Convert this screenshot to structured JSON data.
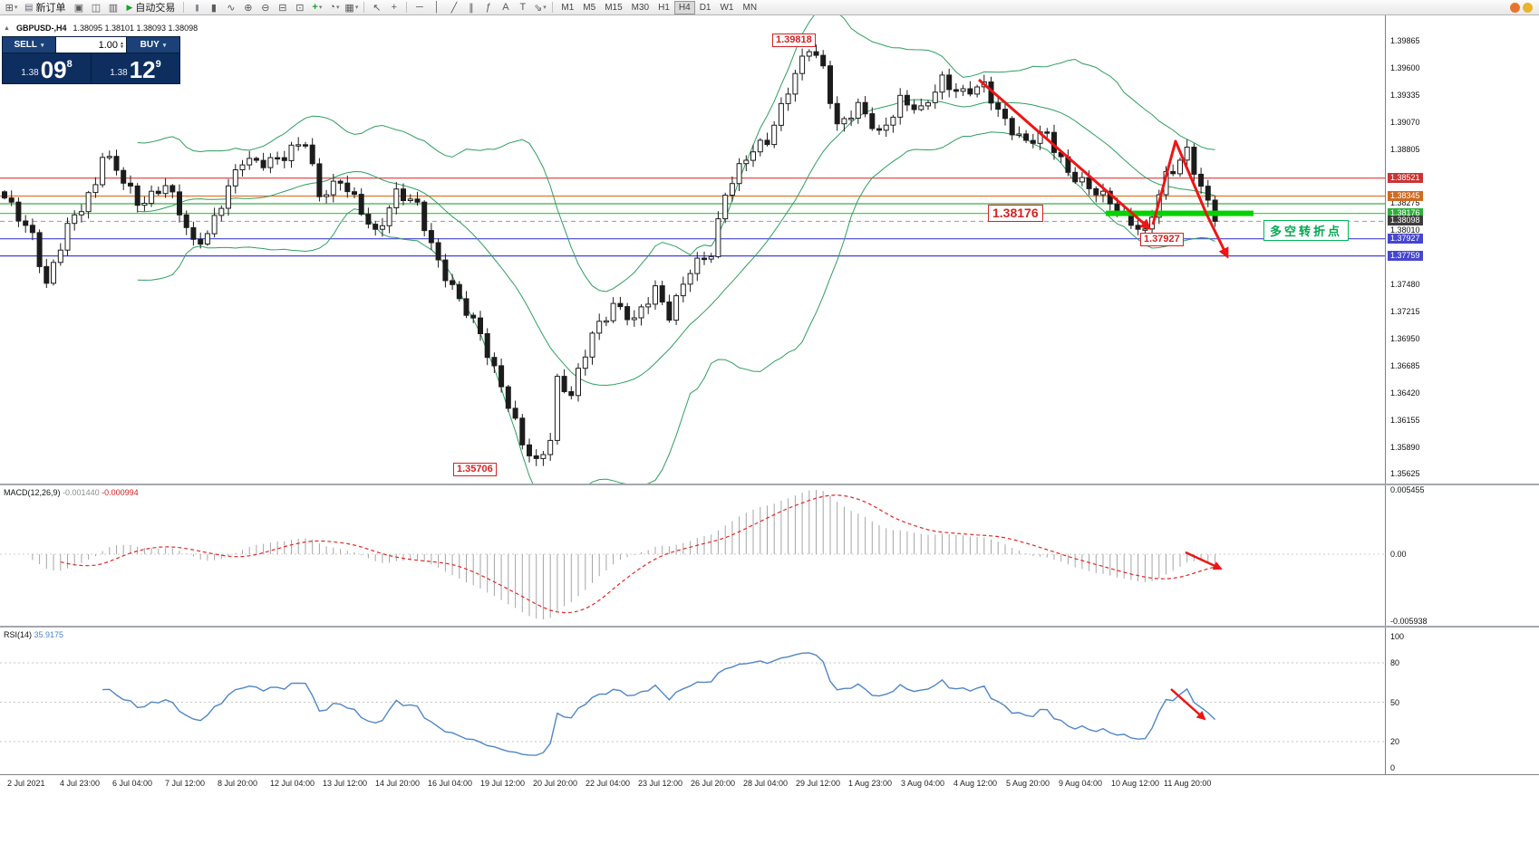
{
  "toolbar": {
    "new_order_label": "新订单",
    "auto_trading_label": "自动交易",
    "timeframes": [
      "M1",
      "M5",
      "M15",
      "M30",
      "H1",
      "H4",
      "D1",
      "W1",
      "MN"
    ],
    "active_timeframe": "H4"
  },
  "symbol_header": {
    "name": "GBPUSD-,H4",
    "ohlc": "1.38095 1.38101 1.38093 1.38098"
  },
  "trade_panel": {
    "sell_label": "SELL",
    "buy_label": "BUY",
    "volume": "1.00",
    "sell_price_prefix": "1.38",
    "sell_price_big": "09",
    "sell_price_sup": "8",
    "buy_price_prefix": "1.38",
    "buy_price_big": "12",
    "buy_price_sup": "9"
  },
  "price_axis": {
    "ticks": [
      "1.39865",
      "1.39600",
      "1.39335",
      "1.39070",
      "1.38805",
      "1.38275",
      "1.38010",
      "1.37480",
      "1.37215",
      "1.36950",
      "1.36685",
      "1.36420",
      "1.36155",
      "1.35890",
      "1.35625"
    ],
    "highlights": [
      {
        "value": "1.38521",
        "bg": "#c93535"
      },
      {
        "value": "1.38345",
        "bg": "#cf6b22"
      },
      {
        "value": "1.38176",
        "bg": "#2fae3a"
      },
      {
        "value": "1.38098",
        "bg": "#3d3d3d"
      },
      {
        "value": "1.37927",
        "bg": "#4646cf"
      },
      {
        "value": "1.37759",
        "bg": "#4646cf"
      }
    ]
  },
  "hlines": [
    {
      "price": "1.38521",
      "color": "#e03a3a"
    },
    {
      "price": "1.38345",
      "color": "#e2762a"
    },
    {
      "price": "1.38270",
      "color": "#3fae49"
    },
    {
      "price": "1.38176",
      "color": "#4ccc4c"
    },
    {
      "price": "1.37927",
      "color": "#4343d6"
    },
    {
      "price": "1.37759",
      "color": "#4343d6"
    }
  ],
  "bid_line": {
    "price": "1.38098",
    "color": "#9a9a9a"
  },
  "annotations": {
    "high_label": "1.39818",
    "support_label": "1.38176",
    "swing_low_label": "1.37927",
    "bottom_label": "1.35706",
    "note": "多空转折点"
  },
  "macd": {
    "title": "MACD(12,26,9)",
    "main_value": "-0.001440",
    "signal_value": "-0.000994",
    "axis_labels": [
      "0.005455",
      "0.00",
      "-0.005938"
    ]
  },
  "rsi": {
    "title": "RSI(14)",
    "value": "35.9175",
    "axis_labels": [
      "100",
      "80",
      "50",
      "20",
      "0"
    ]
  },
  "time_axis": [
    "2 Jul 2021",
    "4 Jul 23:00",
    "6 Jul 04:00",
    "7 Jul 12:00",
    "8 Jul 20:00",
    "12 Jul 04:00",
    "13 Jul 12:00",
    "14 Jul 20:00",
    "16 Jul 04:00",
    "19 Jul 12:00",
    "20 Jul 20:00",
    "22 Jul 04:00",
    "23 Jul 12:00",
    "26 Jul 20:00",
    "28 Jul 04:00",
    "29 Jul 12:00",
    "1 Aug 23:00",
    "3 Aug 04:00",
    "4 Aug 12:00",
    "5 Aug 20:00",
    "9 Aug 04:00",
    "10 Aug 12:00",
    "11 Aug 20:00"
  ],
  "chart_data": {
    "type": "candlestick",
    "symbol": "GBPUSD-",
    "timeframe": "H4",
    "visible_high": 1.39818,
    "visible_low": 1.35706,
    "last_price": 1.38098,
    "candle_count": 174,
    "close_keypoints": [
      [
        0,
        1.383
      ],
      [
        4,
        1.3798
      ],
      [
        6,
        1.3748
      ],
      [
        9,
        1.3802
      ],
      [
        13,
        1.3848
      ],
      [
        14,
        1.3878
      ],
      [
        16,
        1.3858
      ],
      [
        19,
        1.3828
      ],
      [
        23,
        1.3846
      ],
      [
        27,
        1.3788
      ],
      [
        29,
        1.38
      ],
      [
        34,
        1.3868
      ],
      [
        40,
        1.3872
      ],
      [
        43,
        1.3888
      ],
      [
        45,
        1.3838
      ],
      [
        48,
        1.3848
      ],
      [
        53,
        1.38
      ],
      [
        56,
        1.3836
      ],
      [
        59,
        1.3824
      ],
      [
        62,
        1.3772
      ],
      [
        65,
        1.373
      ],
      [
        68,
        1.37
      ],
      [
        71,
        1.365
      ],
      [
        74,
        1.359
      ],
      [
        76,
        1.3573
      ],
      [
        78,
        1.36
      ],
      [
        79,
        1.3655
      ],
      [
        81,
        1.3638
      ],
      [
        84,
        1.37
      ],
      [
        87,
        1.373
      ],
      [
        90,
        1.371
      ],
      [
        93,
        1.3745
      ],
      [
        95,
        1.372
      ],
      [
        98,
        1.376
      ],
      [
        101,
        1.378
      ],
      [
        103,
        1.384
      ],
      [
        106,
        1.387
      ],
      [
        109,
        1.389
      ],
      [
        112,
        1.394
      ],
      [
        115,
        1.3978
      ],
      [
        117,
        1.396
      ],
      [
        119,
        1.3905
      ],
      [
        122,
        1.392
      ],
      [
        125,
        1.3895
      ],
      [
        128,
        1.393
      ],
      [
        131,
        1.3915
      ],
      [
        134,
        1.395
      ],
      [
        137,
        1.3935
      ],
      [
        140,
        1.394
      ],
      [
        143,
        1.391
      ],
      [
        146,
        1.3885
      ],
      [
        149,
        1.3895
      ],
      [
        152,
        1.386
      ],
      [
        155,
        1.384
      ],
      [
        158,
        1.383
      ],
      [
        161,
        1.381
      ],
      [
        163,
        1.3795
      ],
      [
        166,
        1.3855
      ],
      [
        169,
        1.388
      ],
      [
        171,
        1.384
      ],
      [
        173,
        1.38098
      ]
    ],
    "indicators": [
      {
        "name": "Bollinger Bands",
        "period": 20,
        "color": "#2f9e60"
      },
      {
        "name": "MACD",
        "params": "12,26,9",
        "main": -0.00144,
        "signal": -0.000994
      },
      {
        "name": "RSI",
        "period": 14,
        "value": 35.9175
      }
    ]
  }
}
